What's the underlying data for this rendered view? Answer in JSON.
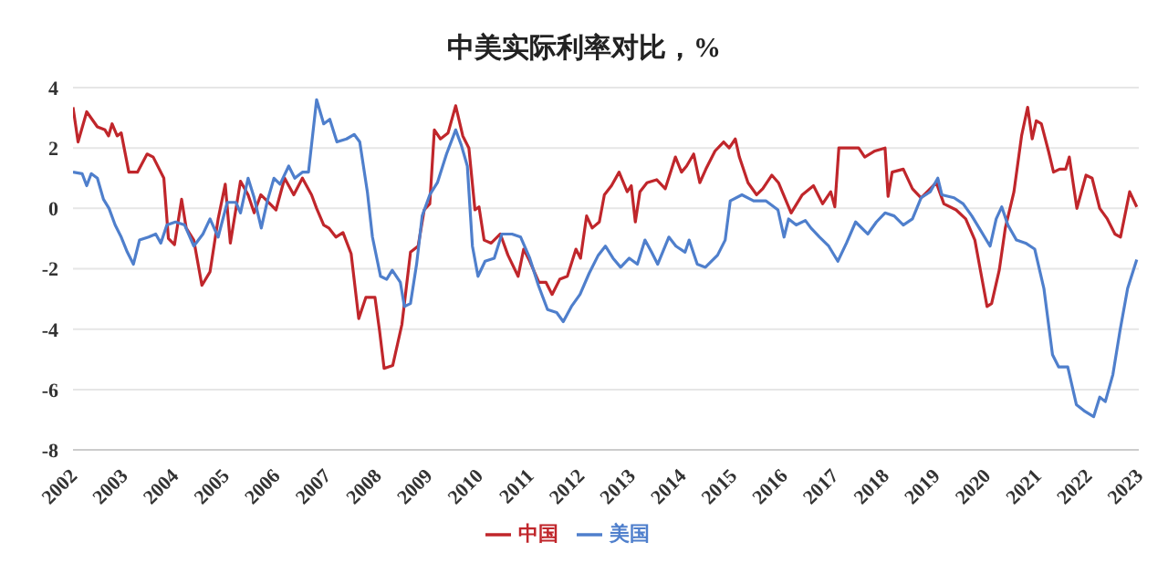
{
  "chart_data": {
    "type": "line",
    "title": "中美实际利率对比，%",
    "xlim": [
      2002,
      2023
    ],
    "xticks": [
      2002,
      2003,
      2004,
      2005,
      2006,
      2007,
      2008,
      2009,
      2010,
      2011,
      2012,
      2013,
      2014,
      2015,
      2016,
      2017,
      2018,
      2019,
      2020,
      2021,
      2022,
      2023
    ],
    "ylim": [
      -8,
      4
    ],
    "yticks": [
      -8,
      -6,
      -4,
      -2,
      0,
      2,
      4
    ],
    "grid": "y",
    "legend": "bottom",
    "line_style": "solid",
    "marker": "none",
    "series": [
      {
        "name": "中国",
        "color": "#c0262b",
        "x": [
          2002.0,
          2002.1,
          2002.27,
          2002.48,
          2002.63,
          2002.7,
          2002.77,
          2002.87,
          2002.95,
          2003.1,
          2003.27,
          2003.46,
          2003.58,
          2003.79,
          2003.88,
          2004.0,
          2004.14,
          2004.23,
          2004.38,
          2004.54,
          2004.7,
          2004.86,
          2005.0,
          2005.1,
          2005.3,
          2005.45,
          2005.57,
          2005.7,
          2005.85,
          2006.0,
          2006.17,
          2006.35,
          2006.52,
          2006.7,
          2006.8,
          2006.94,
          2007.04,
          2007.18,
          2007.32,
          2007.48,
          2007.63,
          2007.77,
          2007.95,
          2008.04,
          2008.13,
          2008.3,
          2008.48,
          2008.65,
          2008.8,
          2008.92,
          2009.03,
          2009.12,
          2009.24,
          2009.39,
          2009.54,
          2009.68,
          2009.8,
          2009.92,
          2010.0,
          2010.1,
          2010.24,
          2010.42,
          2010.57,
          2010.77,
          2010.88,
          2011.0,
          2011.18,
          2011.32,
          2011.44,
          2011.59,
          2011.74,
          2011.91,
          2012.0,
          2012.12,
          2012.23,
          2012.37,
          2012.47,
          2012.61,
          2012.76,
          2012.92,
          2013.0,
          2013.08,
          2013.17,
          2013.31,
          2013.5,
          2013.67,
          2013.87,
          2013.99,
          2014.09,
          2014.23,
          2014.35,
          2014.47,
          2014.65,
          2014.82,
          2014.93,
          2015.05,
          2015.13,
          2015.3,
          2015.47,
          2015.59,
          2015.77,
          2015.9,
          2016.15,
          2016.37,
          2016.59,
          2016.77,
          2016.93,
          2017.01,
          2017.09,
          2017.48,
          2017.6,
          2017.8,
          2018.0,
          2018.06,
          2018.14,
          2018.36,
          2018.54,
          2018.71,
          2019.01,
          2019.16,
          2019.4,
          2019.59,
          2019.77,
          2019.89,
          2020.01,
          2020.1,
          2020.25,
          2020.37,
          2020.54,
          2020.69,
          2020.81,
          2020.9,
          2020.98,
          2021.08,
          2021.22,
          2021.32,
          2021.44,
          2021.56,
          2021.63,
          2021.78,
          2021.96,
          2022.08,
          2022.23,
          2022.38,
          2022.53,
          2022.64,
          2022.82,
          2022.96
        ],
        "values": [
          3.35,
          2.2,
          3.2,
          2.7,
          2.6,
          2.4,
          2.8,
          2.4,
          2.5,
          1.2,
          1.2,
          1.8,
          1.7,
          1.0,
          -1.0,
          -1.2,
          0.3,
          -0.65,
          -1.05,
          -2.55,
          -2.1,
          -0.35,
          0.8,
          -1.15,
          0.9,
          0.45,
          -0.15,
          0.45,
          0.2,
          -0.05,
          1.0,
          0.45,
          1.0,
          0.45,
          0,
          -0.55,
          -0.65,
          -0.95,
          -0.8,
          -1.5,
          -3.65,
          -2.95,
          -2.95,
          -4.05,
          -5.3,
          -5.2,
          -3.85,
          -1.45,
          -1.25,
          -0.05,
          0.15,
          2.6,
          2.3,
          2.5,
          3.4,
          2.4,
          2.0,
          -0.05,
          0.05,
          -1.05,
          -1.15,
          -0.85,
          -1.55,
          -2.25,
          -1.35,
          -1.75,
          -2.45,
          -2.45,
          -2.85,
          -2.35,
          -2.25,
          -1.35,
          -1.65,
          -0.25,
          -0.65,
          -0.45,
          0.45,
          0.75,
          1.2,
          0.55,
          0.75,
          -0.45,
          0.55,
          0.85,
          0.95,
          0.65,
          1.7,
          1.2,
          1.4,
          1.8,
          0.85,
          1.3,
          1.9,
          2.2,
          2.0,
          2.3,
          1.7,
          0.85,
          0.45,
          0.65,
          1.1,
          0.85,
          -0.15,
          0.45,
          0.75,
          0.15,
          0.55,
          0.05,
          2.0,
          2.0,
          1.7,
          1.9,
          2.0,
          0.4,
          1.2,
          1.3,
          0.65,
          0.35,
          0.85,
          0.15,
          -0.05,
          -0.35,
          -1.05,
          -2.15,
          -3.25,
          -3.15,
          -2.05,
          -0.65,
          0.55,
          2.4,
          3.35,
          2.3,
          2.9,
          2.8,
          1.9,
          1.2,
          1.3,
          1.3,
          1.7,
          0,
          1.1,
          1.0,
          0,
          -0.35,
          -0.85,
          -0.95,
          0.55,
          0.05
        ]
      },
      {
        "name": "美国",
        "color": "#4f7fcc",
        "x": [
          2002.0,
          2002.18,
          2002.27,
          2002.36,
          2002.48,
          2002.6,
          2002.71,
          2002.83,
          2002.95,
          2003.07,
          2003.19,
          2003.31,
          2003.49,
          2003.63,
          2003.73,
          2003.85,
          2004.02,
          2004.2,
          2004.38,
          2004.56,
          2004.7,
          2004.86,
          2005.04,
          2005.21,
          2005.3,
          2005.45,
          2005.57,
          2005.71,
          2005.83,
          2005.96,
          2006.08,
          2006.25,
          2006.37,
          2006.52,
          2006.64,
          2006.8,
          2006.94,
          2007.06,
          2007.2,
          2007.39,
          2007.54,
          2007.65,
          2007.8,
          2007.9,
          2008.06,
          2008.18,
          2008.29,
          2008.45,
          2008.53,
          2008.65,
          2008.77,
          2008.88,
          2009.03,
          2009.18,
          2009.36,
          2009.54,
          2009.65,
          2009.77,
          2009.87,
          2009.98,
          2010.12,
          2010.3,
          2010.45,
          2010.65,
          2010.82,
          2011.0,
          2011.17,
          2011.35,
          2011.53,
          2011.66,
          2011.82,
          2011.99,
          2012.17,
          2012.35,
          2012.49,
          2012.64,
          2012.79,
          2012.96,
          2013.12,
          2013.27,
          2013.4,
          2013.52,
          2013.74,
          2013.88,
          2014.06,
          2014.14,
          2014.3,
          2014.46,
          2014.7,
          2014.85,
          2014.95,
          2015.18,
          2015.41,
          2015.65,
          2015.89,
          2016.01,
          2016.1,
          2016.25,
          2016.43,
          2016.54,
          2016.71,
          2016.89,
          2017.07,
          2017.24,
          2017.42,
          2017.66,
          2017.83,
          2018.0,
          2018.18,
          2018.36,
          2018.54,
          2018.71,
          2018.89,
          2019.04,
          2019.12,
          2019.36,
          2019.54,
          2019.71,
          2019.89,
          2020.07,
          2020.19,
          2020.3,
          2020.42,
          2020.59,
          2020.77,
          2020.95,
          2021.13,
          2021.3,
          2021.42,
          2021.6,
          2021.77,
          2021.92,
          2022.11,
          2022.23,
          2022.34,
          2022.49,
          2022.63,
          2022.78,
          2022.96
        ],
        "values": [
          1.2,
          1.15,
          0.75,
          1.15,
          1.0,
          0.3,
          0,
          -0.55,
          -0.95,
          -1.45,
          -1.85,
          -1.05,
          -0.95,
          -0.85,
          -1.15,
          -0.55,
          -0.45,
          -0.55,
          -1.25,
          -0.85,
          -0.35,
          -0.95,
          0.2,
          0.2,
          -0.15,
          1.0,
          0.35,
          -0.65,
          0.25,
          1.0,
          0.8,
          1.4,
          1.0,
          1.2,
          1.2,
          3.6,
          2.8,
          2.95,
          2.2,
          2.3,
          2.45,
          2.2,
          0.55,
          -0.95,
          -2.25,
          -2.35,
          -2.05,
          -2.45,
          -3.25,
          -3.15,
          -1.85,
          -0.25,
          0.45,
          0.85,
          1.8,
          2.6,
          2.1,
          1.4,
          -1.25,
          -2.25,
          -1.75,
          -1.65,
          -0.85,
          -0.85,
          -0.95,
          -1.65,
          -2.55,
          -3.35,
          -3.45,
          -3.75,
          -3.25,
          -2.85,
          -2.15,
          -1.55,
          -1.25,
          -1.65,
          -1.95,
          -1.65,
          -1.85,
          -1.05,
          -1.45,
          -1.85,
          -0.95,
          -1.25,
          -1.45,
          -1.05,
          -1.85,
          -1.95,
          -1.55,
          -1.05,
          0.25,
          0.45,
          0.25,
          0.25,
          -0.05,
          -0.95,
          -0.35,
          -0.55,
          -0.4,
          -0.65,
          -0.95,
          -1.25,
          -1.75,
          -1.15,
          -0.45,
          -0.85,
          -0.45,
          -0.15,
          -0.25,
          -0.55,
          -0.35,
          0.35,
          0.55,
          1.0,
          0.45,
          0.35,
          0.15,
          -0.25,
          -0.75,
          -1.25,
          -0.35,
          0.05,
          -0.55,
          -1.05,
          -1.15,
          -1.35,
          -2.65,
          -4.85,
          -5.25,
          -5.25,
          -6.5,
          -6.7,
          -6.9,
          -6.25,
          -6.4,
          -5.5,
          -4.05,
          -2.65,
          -1.7
        ]
      }
    ]
  }
}
